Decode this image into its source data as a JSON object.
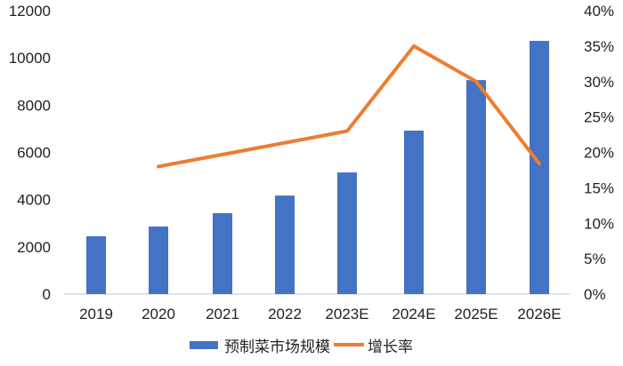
{
  "chart_data": {
    "type": "bar+line",
    "title": "",
    "categories": [
      "2019",
      "2020",
      "2021",
      "2022",
      "2023E",
      "2024E",
      "2025E",
      "2026E"
    ],
    "series": [
      {
        "name": "预制菜市场规模",
        "type": "bar",
        "axis": "left",
        "color": "#4472C4",
        "values": [
          2445,
          2860,
          3425,
          4170,
          5150,
          6920,
          9060,
          10720
        ]
      },
      {
        "name": "增长率",
        "type": "line",
        "axis": "right",
        "color": "#ED7D31",
        "values": [
          null,
          0.18,
          null,
          null,
          0.23,
          0.35,
          0.3,
          0.184
        ]
      }
    ],
    "left_axis": {
      "min": 0,
      "max": 12000,
      "ticks": [
        "0",
        "2000",
        "4000",
        "6000",
        "8000",
        "10000",
        "12000"
      ]
    },
    "right_axis": {
      "min": 0,
      "max": 0.4,
      "ticks": [
        "0%",
        "5%",
        "10%",
        "15%",
        "20%",
        "25%",
        "30%",
        "35%",
        "40%"
      ]
    },
    "grid": false,
    "legend_position": "bottom"
  },
  "legend": {
    "bar_label": "预制菜市场规模",
    "line_label": "增长率"
  }
}
